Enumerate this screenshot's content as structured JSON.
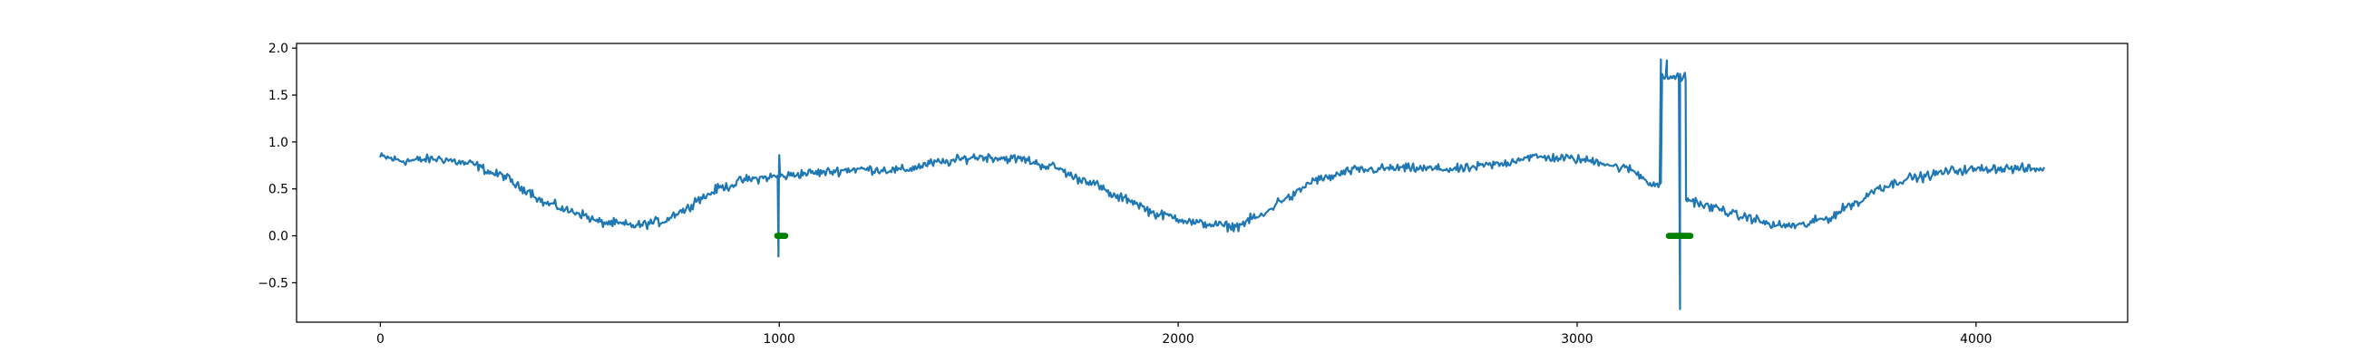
{
  "chart_data": {
    "type": "line",
    "title": "",
    "xlabel": "",
    "ylabel": "",
    "xlim": [
      -210,
      4380
    ],
    "ylim": [
      -0.92,
      2.05
    ],
    "xticks": [
      0,
      1000,
      2000,
      3000,
      4000
    ],
    "xtick_labels": [
      "0",
      "1000",
      "2000",
      "3000",
      "4000"
    ],
    "yticks": [
      -0.5,
      0.0,
      0.5,
      1.0,
      1.5,
      2.0
    ],
    "ytick_labels": [
      "−0.5",
      "0.0",
      "0.5",
      "1.0",
      "1.5",
      "2.0"
    ],
    "grid": false,
    "legend": "none",
    "series": [
      {
        "kind": "line",
        "color": "#1f77b4",
        "x_start": 0,
        "x_end": 4170,
        "x_step": 3,
        "noise_amplitude": 0.045,
        "baseline_points": [
          [
            0,
            0.84
          ],
          [
            60,
            0.8
          ],
          [
            150,
            0.82
          ],
          [
            220,
            0.77
          ],
          [
            300,
            0.65
          ],
          [
            360,
            0.5
          ],
          [
            420,
            0.34
          ],
          [
            480,
            0.26
          ],
          [
            560,
            0.14
          ],
          [
            640,
            0.11
          ],
          [
            700,
            0.15
          ],
          [
            760,
            0.27
          ],
          [
            800,
            0.4
          ],
          [
            860,
            0.52
          ],
          [
            920,
            0.6
          ],
          [
            990,
            0.63
          ],
          [
            1080,
            0.67
          ],
          [
            1200,
            0.71
          ],
          [
            1300,
            0.7
          ],
          [
            1400,
            0.78
          ],
          [
            1500,
            0.84
          ],
          [
            1600,
            0.82
          ],
          [
            1680,
            0.74
          ],
          [
            1760,
            0.6
          ],
          [
            1860,
            0.4
          ],
          [
            1960,
            0.22
          ],
          [
            2060,
            0.13
          ],
          [
            2140,
            0.1
          ],
          [
            2200,
            0.2
          ],
          [
            2270,
            0.4
          ],
          [
            2350,
            0.6
          ],
          [
            2450,
            0.7
          ],
          [
            2550,
            0.72
          ],
          [
            2700,
            0.71
          ],
          [
            2800,
            0.76
          ],
          [
            2880,
            0.84
          ],
          [
            2960,
            0.83
          ],
          [
            3040,
            0.8
          ],
          [
            3120,
            0.72
          ],
          [
            3200,
            0.55
          ],
          [
            3240,
            0.52
          ],
          [
            3280,
            0.38
          ],
          [
            3340,
            0.3
          ],
          [
            3420,
            0.2
          ],
          [
            3500,
            0.11
          ],
          [
            3560,
            0.11
          ],
          [
            3620,
            0.18
          ],
          [
            3700,
            0.35
          ],
          [
            3760,
            0.52
          ],
          [
            3840,
            0.62
          ],
          [
            3960,
            0.7
          ],
          [
            4050,
            0.72
          ],
          [
            4170,
            0.71
          ]
        ],
        "spikes": [
          {
            "x": 998,
            "y": -0.22
          },
          {
            "x": 1000,
            "y": 0.86
          },
          {
            "x": 3210,
            "y": 1.88
          },
          {
            "x": 3225,
            "y": 1.87
          },
          {
            "x": 3240,
            "y": 1.7
          },
          {
            "x": 3255,
            "y": 1.67
          },
          {
            "x": 3258,
            "y": -0.78
          },
          {
            "x": 3272,
            "y": 1.66
          },
          {
            "x": 3278,
            "y": 0.4
          }
        ]
      },
      {
        "kind": "markers",
        "color": "#008000",
        "y": 0.0,
        "ranges": [
          [
            995,
            1015
          ],
          [
            3230,
            3285
          ]
        ]
      }
    ]
  }
}
